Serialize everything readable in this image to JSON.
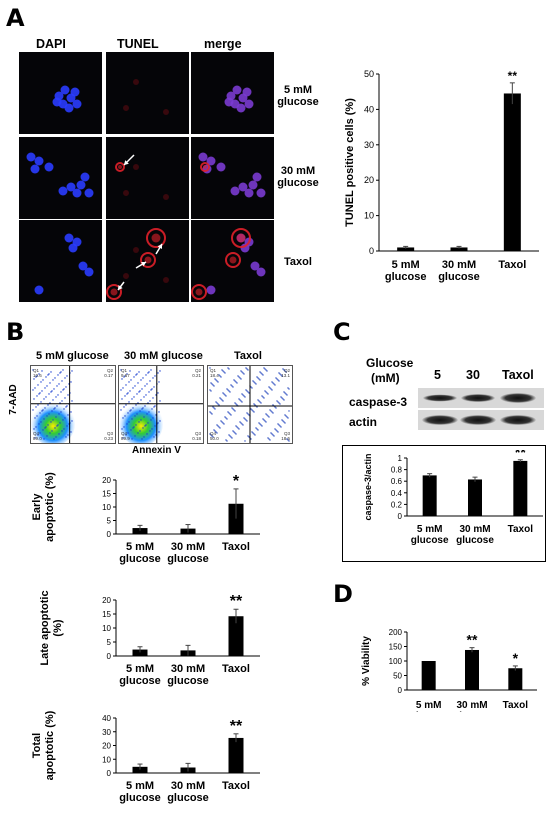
{
  "panels": {
    "a": "A",
    "b": "B",
    "c": "C",
    "d": "D"
  },
  "panel_a": {
    "columns": [
      "DAPI",
      "TUNEL",
      "merge"
    ],
    "rows": [
      {
        "line1": "5 mM",
        "line2": "glucose"
      },
      {
        "line1": "30 mM",
        "line2": "glucose"
      },
      {
        "line1": "Taxol",
        "line2": ""
      }
    ]
  },
  "panel_b": {
    "flow_titles": [
      "5 mM glucose",
      "30 mM glucose",
      "Taxol"
    ],
    "flow_yaxis": "7-AAD",
    "flow_xaxis": "Annexin V",
    "quadrants": [
      {
        "q1": "Q1",
        "q2": "Q2",
        "q3": "Q3",
        "q4": "Q4",
        "v1": "10.6",
        "v2": "0.17",
        "v3": "0.23",
        "v4": "89.0"
      },
      {
        "q1": "Q1",
        "q2": "Q2",
        "q3": "Q3",
        "q4": "Q4",
        "v1": "9.67",
        "v2": "0.21",
        "v3": "0.18",
        "v4": "89.9"
      },
      {
        "q1": "Q1",
        "q2": "Q2",
        "q3": "Q3",
        "q4": "Q4",
        "v1": "18.4",
        "v2": "13.1",
        "v3": "18.5",
        "v4": "50.0"
      }
    ]
  },
  "panel_c": {
    "glucose_label_1": "Glucose",
    "glucose_label_2": "(mM)",
    "lanes": [
      "5",
      "30",
      "Taxol"
    ],
    "bands": [
      "caspase-3",
      "actin"
    ]
  },
  "colors": {
    "bar": "#000000",
    "dapi": "#2a3cff",
    "tunel": "#e0202a"
  },
  "chart_data": [
    {
      "id": "tunel",
      "type": "bar",
      "categories": [
        [
          "5 mM",
          "glucose"
        ],
        [
          "30 mM",
          "glucose"
        ],
        [
          "Taxol"
        ]
      ],
      "values": [
        1.0,
        1.0,
        44.5
      ],
      "errors": [
        0.3,
        0.3,
        3.0
      ],
      "significance": [
        "",
        "",
        "**"
      ],
      "ylabel": "TUNEL positive cells (%)",
      "ylim": [
        0,
        50
      ],
      "yticks": [
        0,
        10,
        20,
        30,
        40,
        50
      ]
    },
    {
      "id": "early",
      "type": "bar",
      "categories": [
        [
          "5 mM",
          "glucose"
        ],
        [
          "30 mM",
          "glucose"
        ],
        [
          "Taxol"
        ]
      ],
      "values": [
        2.2,
        2.0,
        11.2
      ],
      "errors": [
        1.0,
        1.5,
        5.5
      ],
      "significance": [
        "",
        "",
        "*"
      ],
      "ylabel": [
        "Early",
        "apoptotic (%)"
      ],
      "ylim": [
        0,
        20
      ],
      "yticks": [
        0,
        5,
        10,
        15,
        20
      ]
    },
    {
      "id": "late",
      "type": "bar",
      "categories": [
        [
          "5 mM",
          "glucose"
        ],
        [
          "30 mM",
          "glucose"
        ],
        [
          "Taxol"
        ]
      ],
      "values": [
        2.3,
        2.0,
        14.2
      ],
      "errors": [
        1.0,
        1.8,
        2.5
      ],
      "significance": [
        "",
        "",
        "**"
      ],
      "ylabel": [
        "Late apoptotic",
        "(%)"
      ],
      "ylim": [
        0,
        20
      ],
      "yticks": [
        0,
        5,
        10,
        15,
        20
      ]
    },
    {
      "id": "total",
      "type": "bar",
      "categories": [
        [
          "5 mM",
          "glucose"
        ],
        [
          "30 mM",
          "glucose"
        ],
        [
          "Taxol"
        ]
      ],
      "values": [
        4.5,
        4.0,
        25.5
      ],
      "errors": [
        2.0,
        3.0,
        3.0
      ],
      "significance": [
        "",
        "",
        "**"
      ],
      "ylabel": [
        "Total",
        "apoptotic (%)"
      ],
      "ylim": [
        0,
        40
      ],
      "yticks": [
        0,
        10,
        20,
        30,
        40
      ]
    },
    {
      "id": "caspase",
      "type": "bar",
      "categories": [
        [
          "5 mM",
          "glucose"
        ],
        [
          "30 mM",
          "glucose"
        ],
        [
          "Taxol"
        ]
      ],
      "values": [
        0.7,
        0.63,
        0.95
      ],
      "errors": [
        0.03,
        0.04,
        0.02
      ],
      "significance": [
        "",
        "",
        "**"
      ],
      "ylabel": "caspase-3/actin",
      "ylim": [
        0,
        1
      ],
      "yticks": [
        0,
        0.2,
        0.4,
        0.6,
        0.8,
        1
      ]
    },
    {
      "id": "viability",
      "type": "bar",
      "categories": [
        [
          "5 mM",
          "glucose"
        ],
        [
          "30 mM",
          "glucose"
        ],
        [
          "Taxol"
        ]
      ],
      "values": [
        100,
        138,
        75
      ],
      "errors": [
        0,
        8,
        8
      ],
      "significance": [
        "",
        "**",
        "*"
      ],
      "ylabel": "% Viability",
      "ylim": [
        0,
        200
      ],
      "yticks": [
        0,
        50,
        100,
        150,
        200
      ]
    }
  ]
}
